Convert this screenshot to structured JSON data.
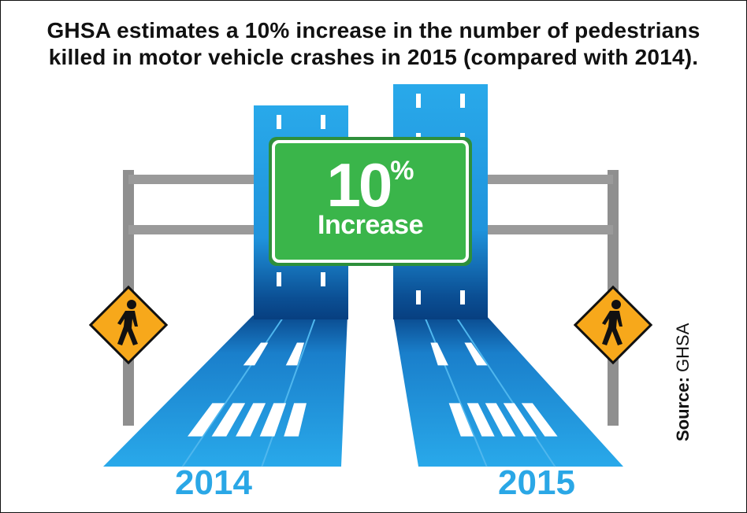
{
  "title": {
    "line1": "GHSA estimates a 10% increase in the number of pedestrians",
    "line2": "killed in motor vehicle crashes in 2015 (compared with 2014)."
  },
  "sign": {
    "value": "10",
    "percent": "%",
    "label": "Increase",
    "color": "#3ab54a"
  },
  "source": {
    "prefix": "Source:",
    "name": "GHSA"
  },
  "colors": {
    "road": "#1a8fd8",
    "label": "#2aa7e6",
    "pedestrian_sign": "#f7a81b"
  },
  "chart_data": {
    "type": "bar",
    "categories": [
      "2014",
      "2015"
    ],
    "values": [
      100,
      110
    ],
    "annotation": "10% Increase",
    "title": "GHSA estimates a 10% increase in the number of pedestrians killed in motor vehicle crashes in 2015 (compared with 2014).",
    "xlabel": "",
    "ylabel": ""
  }
}
